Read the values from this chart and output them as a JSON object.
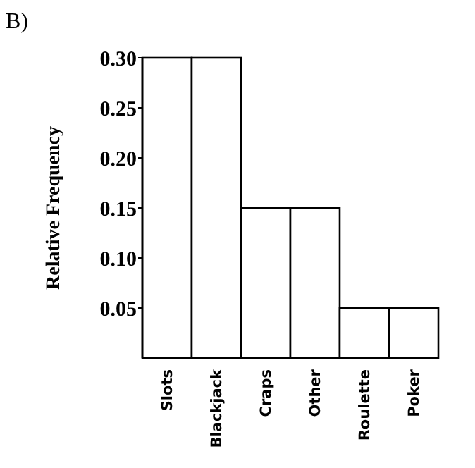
{
  "chart_data": {
    "type": "bar",
    "title": "B)",
    "ylabel": "Relative Frequency",
    "categories": [
      "Slots",
      "Blackjack",
      "Craps",
      "Other",
      "Roulette",
      "Poker"
    ],
    "values": [
      0.3,
      0.3,
      0.15,
      0.15,
      0.05,
      0.05
    ],
    "color": "#ffffff",
    "ylim": [
      0,
      0.3
    ],
    "yticks": [
      {
        "value": 0.05,
        "label": "0.05"
      },
      {
        "value": 0.1,
        "label": "0.10"
      },
      {
        "value": 0.15,
        "label": "0.15"
      },
      {
        "value": 0.2,
        "label": "0.20"
      },
      {
        "value": 0.25,
        "label": "0.25"
      },
      {
        "value": 0.3,
        "label": "0.30"
      }
    ],
    "grid": false
  }
}
